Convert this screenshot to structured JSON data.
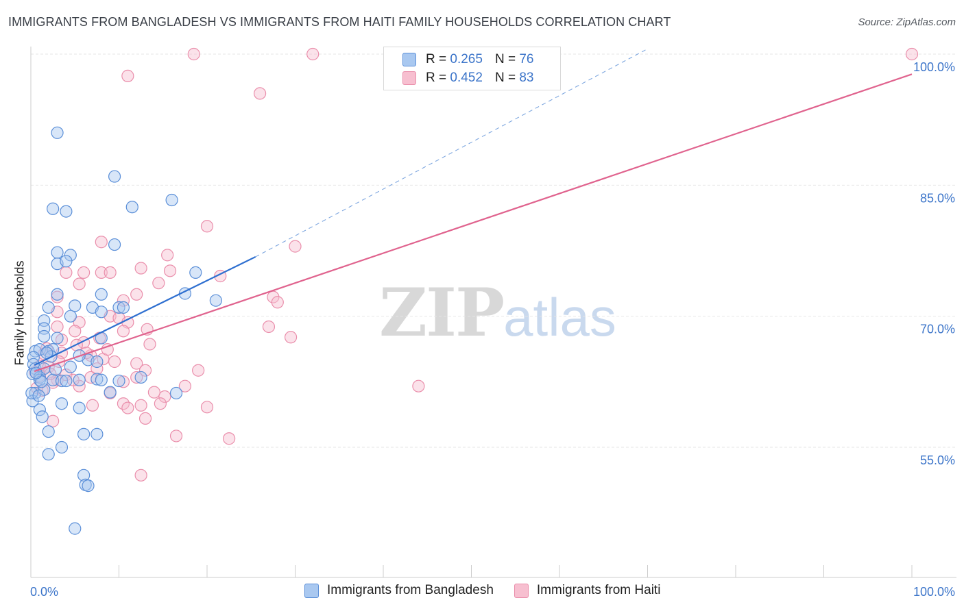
{
  "header": {
    "title": "IMMIGRANTS FROM BANGLADESH VS IMMIGRANTS FROM HAITI FAMILY HOUSEHOLDS CORRELATION CHART",
    "source": "Source: ZipAtlas.com"
  },
  "watermark": {
    "zip": "ZIP",
    "atlas": "atlas"
  },
  "legend": {
    "rows": [
      {
        "r_label": "R = ",
        "r_value": "0.265",
        "n_label": "N = ",
        "n_value": "76"
      },
      {
        "r_label": "R = ",
        "r_value": "0.452",
        "n_label": "N = ",
        "n_value": "83"
      }
    ]
  },
  "chart_data": {
    "type": "scatter",
    "title": "IMMIGRANTS FROM BANGLADESH VS IMMIGRANTS FROM HAITI FAMILY HOUSEHOLDS CORRELATION CHART",
    "xlabel": "",
    "ylabel": "Family Households",
    "xlim": [
      0,
      100
    ],
    "ylim": [
      41,
      102
    ],
    "x_tick_labels": [
      "0.0%",
      "100.0%"
    ],
    "y_ticks": [
      55,
      70,
      85,
      100
    ],
    "y_tick_labels": [
      "55.0%",
      "70.0%",
      "85.0%",
      "100.0%"
    ],
    "grid": true,
    "legend_position": "bottom",
    "colors": {
      "bangladesh_fill": "#a9c8f0",
      "bangladesh_stroke": "#5b8fd8",
      "bangladesh_line": "#2e6fd0",
      "haiti_fill": "#f7bfd0",
      "haiti_stroke": "#ea8eab",
      "haiti_line": "#e0638e",
      "value_text": "#3b74c9"
    },
    "series": [
      {
        "name": "Immigrants from Bangladesh",
        "r": 0.265,
        "n": 76,
        "trend": {
          "x": [
            0.4,
            25.5
          ],
          "y": [
            64.4,
            76.8
          ]
        },
        "trend_extension": {
          "x": [
            25.5,
            70
          ],
          "y": [
            76.8,
            100.6
          ]
        },
        "points": [
          [
            3,
            91
          ],
          [
            9.5,
            86
          ],
          [
            11.5,
            82.5
          ],
          [
            16,
            83.3
          ],
          [
            2.5,
            82.3
          ],
          [
            4,
            82
          ],
          [
            3,
            77.3
          ],
          [
            4.5,
            77
          ],
          [
            3,
            76
          ],
          [
            4,
            76.3
          ],
          [
            9.5,
            78.2
          ],
          [
            18.7,
            75
          ],
          [
            3,
            72.5
          ],
          [
            8,
            72.5
          ],
          [
            10,
            71
          ],
          [
            21,
            71.8
          ],
          [
            17.5,
            72.6
          ],
          [
            5,
            71.2
          ],
          [
            7,
            71
          ],
          [
            2,
            71
          ],
          [
            1.5,
            69.5
          ],
          [
            4.5,
            70
          ],
          [
            8,
            70.5
          ],
          [
            1.5,
            68.6
          ],
          [
            1.5,
            67.7
          ],
          [
            3,
            67.5
          ],
          [
            8,
            67.5
          ],
          [
            0.5,
            66
          ],
          [
            1,
            66.2
          ],
          [
            2,
            66
          ],
          [
            2.5,
            66.2
          ],
          [
            0.3,
            65.3
          ],
          [
            2.3,
            65.4
          ],
          [
            6.5,
            65
          ],
          [
            5.5,
            65.5
          ],
          [
            0.3,
            64.5
          ],
          [
            0.5,
            64
          ],
          [
            1.5,
            64
          ],
          [
            4.5,
            64.2
          ],
          [
            0.2,
            63.4
          ],
          [
            1,
            63
          ],
          [
            1,
            62.7
          ],
          [
            2.5,
            62.7
          ],
          [
            3.5,
            62.6
          ],
          [
            4,
            62.6
          ],
          [
            5.5,
            62.7
          ],
          [
            7.5,
            62.8
          ],
          [
            8,
            62.7
          ],
          [
            10,
            62.6
          ],
          [
            0.5,
            61.2
          ],
          [
            1.5,
            61.6
          ],
          [
            9,
            61.3
          ],
          [
            16.5,
            61.2
          ],
          [
            1,
            59.3
          ],
          [
            3.5,
            60
          ],
          [
            5.5,
            59.5
          ],
          [
            2,
            56.8
          ],
          [
            6,
            56.5
          ],
          [
            7.5,
            56.5
          ],
          [
            3.5,
            55
          ],
          [
            2,
            54.2
          ],
          [
            6,
            51.8
          ],
          [
            6.2,
            50.7
          ],
          [
            6.5,
            50.6
          ],
          [
            5,
            45.7
          ],
          [
            0.2,
            60.3
          ],
          [
            0.1,
            61.2
          ],
          [
            1.2,
            62.5
          ],
          [
            0.6,
            63.5
          ],
          [
            2.8,
            63.9
          ],
          [
            1.8,
            65.8
          ],
          [
            10.5,
            71
          ],
          [
            12.5,
            63
          ],
          [
            7.5,
            64.8
          ],
          [
            1.3,
            58.5
          ],
          [
            0.9,
            60.9
          ]
        ]
      },
      {
        "name": "Immigrants from Haiti",
        "r": 0.452,
        "n": 83,
        "trend": {
          "x": [
            0.4,
            100
          ],
          "y": [
            63.7,
            97.7
          ]
        },
        "points": [
          [
            18.5,
            100
          ],
          [
            32,
            100
          ],
          [
            100,
            100
          ],
          [
            11,
            97.5
          ],
          [
            26,
            95.5
          ],
          [
            20,
            80.3
          ],
          [
            30,
            78
          ],
          [
            8,
            78.5
          ],
          [
            15.5,
            77
          ],
          [
            4,
            75
          ],
          [
            6,
            75
          ],
          [
            8,
            75
          ],
          [
            9,
            75
          ],
          [
            12.5,
            75.5
          ],
          [
            15.8,
            75.2
          ],
          [
            21.5,
            74.6
          ],
          [
            5.5,
            73.7
          ],
          [
            14.5,
            73.8
          ],
          [
            3,
            72.2
          ],
          [
            10.5,
            71.8
          ],
          [
            12,
            72.5
          ],
          [
            27.5,
            72.2
          ],
          [
            28,
            71.6
          ],
          [
            3,
            70.5
          ],
          [
            9,
            70
          ],
          [
            10,
            69.8
          ],
          [
            5.5,
            69.3
          ],
          [
            11,
            69.3
          ],
          [
            3,
            68.8
          ],
          [
            27,
            68.8
          ],
          [
            5,
            68.3
          ],
          [
            10.5,
            68.3
          ],
          [
            13.2,
            68.5
          ],
          [
            29.5,
            67.6
          ],
          [
            3.5,
            67.3
          ],
          [
            6,
            67
          ],
          [
            13.5,
            66.8
          ],
          [
            1.8,
            66.3
          ],
          [
            3.5,
            65.8
          ],
          [
            6.8,
            65.5
          ],
          [
            8.2,
            65.1
          ],
          [
            12,
            64.6
          ],
          [
            9.5,
            64.8
          ],
          [
            1,
            64.3
          ],
          [
            2,
            64.2
          ],
          [
            4,
            63.3
          ],
          [
            7.5,
            64
          ],
          [
            13,
            63.8
          ],
          [
            1,
            63.2
          ],
          [
            3,
            62.7
          ],
          [
            10.5,
            62.5
          ],
          [
            19,
            63.8
          ],
          [
            12,
            63
          ],
          [
            6.8,
            63
          ],
          [
            2.5,
            62.4
          ],
          [
            5.5,
            62
          ],
          [
            17.5,
            62
          ],
          [
            1.3,
            61.5
          ],
          [
            9,
            61.2
          ],
          [
            15.2,
            60.8
          ],
          [
            10.5,
            60
          ],
          [
            12.5,
            59.8
          ],
          [
            20,
            59.6
          ],
          [
            7,
            59.8
          ],
          [
            11,
            59.5
          ],
          [
            14.7,
            60
          ],
          [
            13,
            58.3
          ],
          [
            2.5,
            58
          ],
          [
            22.5,
            56
          ],
          [
            16.5,
            56.3
          ],
          [
            44,
            62
          ],
          [
            12.5,
            51.8
          ],
          [
            0.5,
            63.6
          ],
          [
            0.7,
            61.8
          ],
          [
            2.2,
            63.4
          ],
          [
            4.8,
            62.7
          ],
          [
            6.3,
            65.8
          ],
          [
            8.7,
            66.2
          ],
          [
            1.5,
            65.7
          ],
          [
            3.2,
            64.8
          ],
          [
            5.2,
            66.7
          ],
          [
            7.8,
            67.5
          ],
          [
            14,
            61.3
          ]
        ]
      }
    ]
  },
  "bottom_legend": {
    "items": [
      {
        "label": "Immigrants from Bangladesh"
      },
      {
        "label": "Immigrants from Haiti"
      }
    ]
  }
}
